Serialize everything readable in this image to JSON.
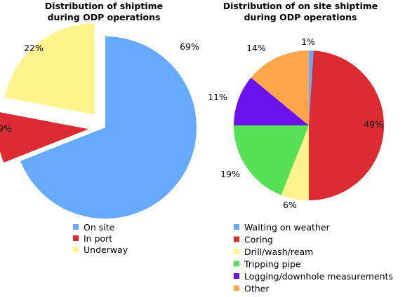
{
  "chart_data": [
    {
      "type": "pie",
      "title": [
        "Distribution of shiptime",
        "during ODP operations"
      ],
      "slices": [
        {
          "name": "On site",
          "value": 69,
          "label": "69%",
          "color": "#66aaff",
          "exploded": false
        },
        {
          "name": "In port",
          "value": 9,
          "label": "9%",
          "color": "#dd2b33",
          "exploded": true
        },
        {
          "name": "Underway",
          "value": 22,
          "label": "22%",
          "color": "#fff48c",
          "exploded": true
        }
      ],
      "legend_position": "bottom"
    },
    {
      "type": "pie",
      "title": [
        "Distribution of on site shiptime",
        "during ODP operations"
      ],
      "slices": [
        {
          "name": "Waiting on weather",
          "value": 1,
          "label": "1%",
          "color": "#66aaff"
        },
        {
          "name": "Coring",
          "value": 49,
          "label": "49%",
          "color": "#dd2b33"
        },
        {
          "name": "Drill/wash/ream",
          "value": 6,
          "label": "6%",
          "color": "#fff48c"
        },
        {
          "name": "Tripping pipe",
          "value": 19,
          "label": "19%",
          "color": "#55e055"
        },
        {
          "name": "Logging/downhole measurements",
          "value": 11,
          "label": "11%",
          "color": "#6b11ee"
        },
        {
          "name": "Other",
          "value": 14,
          "label": "14%",
          "color": "#ffa64d"
        }
      ],
      "legend_position": "bottom"
    }
  ]
}
